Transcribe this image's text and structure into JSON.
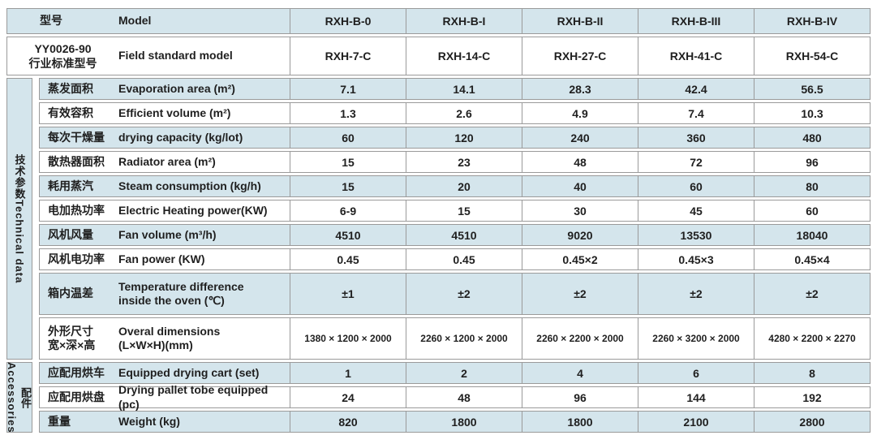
{
  "colors": {
    "band_blue": "#d4e5ec",
    "band_white": "#ffffff",
    "border": "#9a9a9a",
    "text": "#1f1f1f"
  },
  "header_rows": [
    {
      "cn": "型号",
      "en": "Model",
      "values": [
        "RXH-B-0",
        "RXH-B-I",
        "RXH-B-II",
        "RXH-B-III",
        "RXH-B-IV"
      ]
    },
    {
      "cn_line1": "YY0026-90",
      "cn_line2": "行业标准型号",
      "en": "Field standard model",
      "values": [
        "RXH-7-C",
        "RXH-14-C",
        "RXH-27-C",
        "RXH-41-C",
        "RXH-54-C"
      ]
    }
  ],
  "groups": {
    "technical": {
      "cn": "技术参数",
      "en": "Technical data",
      "combined": "技术参数Technical data"
    },
    "accessories": {
      "cn": "配件",
      "en": "Accessories"
    }
  },
  "rows": [
    {
      "cn": "蒸发面积",
      "en": "Evaporation area (m²)",
      "values": [
        "7.1",
        "14.1",
        "28.3",
        "42.4",
        "56.5"
      ]
    },
    {
      "cn": "有效容积",
      "en": "Efficient volume (m²)",
      "values": [
        "1.3",
        "2.6",
        "4.9",
        "7.4",
        "10.3"
      ]
    },
    {
      "cn": "每次干燥量",
      "en": "drying capacity (kg/lot)",
      "values": [
        "60",
        "120",
        "240",
        "360",
        "480"
      ]
    },
    {
      "cn": "散热器面积",
      "en": "Radiator area (m²)",
      "values": [
        "15",
        "23",
        "48",
        "72",
        "96"
      ]
    },
    {
      "cn": "耗用蒸汽",
      "en": "Steam consumption (kg/h)",
      "values": [
        "15",
        "20",
        "40",
        "60",
        "80"
      ]
    },
    {
      "cn": "电加热功率",
      "en": "Electric Heating power(KW)",
      "values": [
        "6-9",
        "15",
        "30",
        "45",
        "60"
      ]
    },
    {
      "cn": "风机风量",
      "en": "Fan volume (m³/h)",
      "values": [
        "4510",
        "4510",
        "9020",
        "13530",
        "18040"
      ]
    },
    {
      "cn": "风机电功率",
      "en": "Fan power (KW)",
      "values": [
        "0.45",
        "0.45",
        "0.45×2",
        "0.45×3",
        "0.45×4"
      ]
    },
    {
      "cn": "箱内温差",
      "en_line1": "Temperature difference",
      "en_line2": "inside the oven (℃)",
      "values": [
        "±1",
        "±2",
        "±2",
        "±2",
        "±2"
      ]
    },
    {
      "cn_line1": "外形尺寸",
      "cn_line2": "宽×深×高",
      "en_line1": "Overal dimensions",
      "en_line2": "(L×W×H)(mm)",
      "values": [
        "1380 × 1200 × 2000",
        "2260 × 1200 × 2000",
        "2260 × 2200 × 2000",
        "2260 × 3200 × 2000",
        "4280 × 2200 × 2270"
      ]
    },
    {
      "cn": "应配用烘车",
      "en": "Equipped drying cart (set)",
      "values": [
        "1",
        "2",
        "4",
        "6",
        "8"
      ]
    },
    {
      "cn": "应配用烘盘",
      "en": "Drying pallet tobe equipped (pc)",
      "values": [
        "24",
        "48",
        "96",
        "144",
        "192"
      ]
    },
    {
      "cn": "重量",
      "en": "Weight (kg)",
      "values": [
        "820",
        "1800",
        "1800",
        "2100",
        "2800"
      ]
    }
  ]
}
